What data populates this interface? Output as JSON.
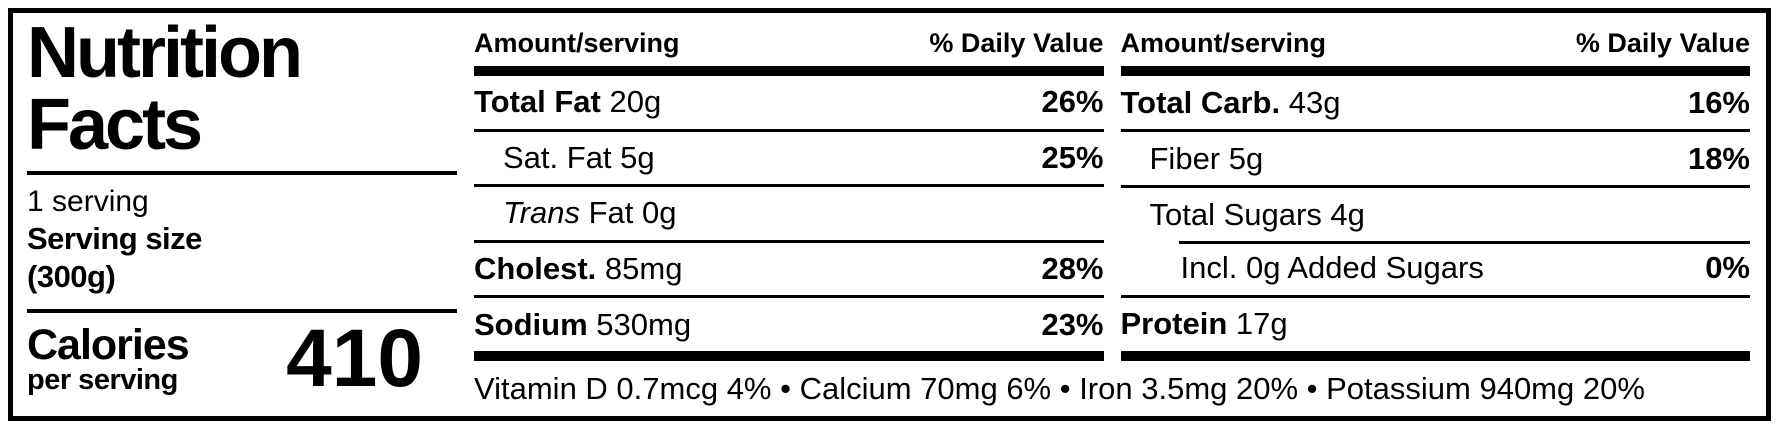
{
  "label": {
    "title_line1": "Nutrition",
    "title_line2": "Facts",
    "servings": "1 serving",
    "serving_size_label": "Serving size",
    "serving_size_value": "(300g)",
    "calories_label": "Calories",
    "calories_sublabel": "per serving",
    "calories_value": "410"
  },
  "table": {
    "columns": [
      {
        "header_amount": "Amount/serving",
        "header_dv": "% Daily Value",
        "rows": [
          {
            "bold": "Total Fat",
            "text": " 20g",
            "dv": "26%"
          },
          {
            "text": "Sat. Fat 5g",
            "dv": "25%"
          },
          {
            "italic": "Trans",
            "text": " Fat 0g",
            "dv": ""
          },
          {
            "bold": "Cholest.",
            "text": " 85mg",
            "dv": "28%"
          },
          {
            "bold": "Sodium",
            "text": " 530mg",
            "dv": "23%"
          }
        ]
      },
      {
        "header_amount": "Amount/serving",
        "header_dv": "% Daily Value",
        "rows": [
          {
            "bold": "Total Carb.",
            "text": " 43g",
            "dv": "16%"
          },
          {
            "text": "Fiber 5g",
            "dv": "18%"
          },
          {
            "text": "Total Sugars 4g",
            "dv": ""
          },
          {
            "text": "Incl. 0g Added Sugars",
            "dv": "0%"
          },
          {
            "bold": "Protein",
            "text": " 17g",
            "dv": ""
          }
        ]
      }
    ],
    "footer": "Vitamin D 0.7mcg 4% • Calcium 70mg 6% • Iron 3.5mg 20% • Potassium 940mg 20%"
  },
  "colors": {
    "ink": "#000000",
    "paper": "#ffffff"
  }
}
